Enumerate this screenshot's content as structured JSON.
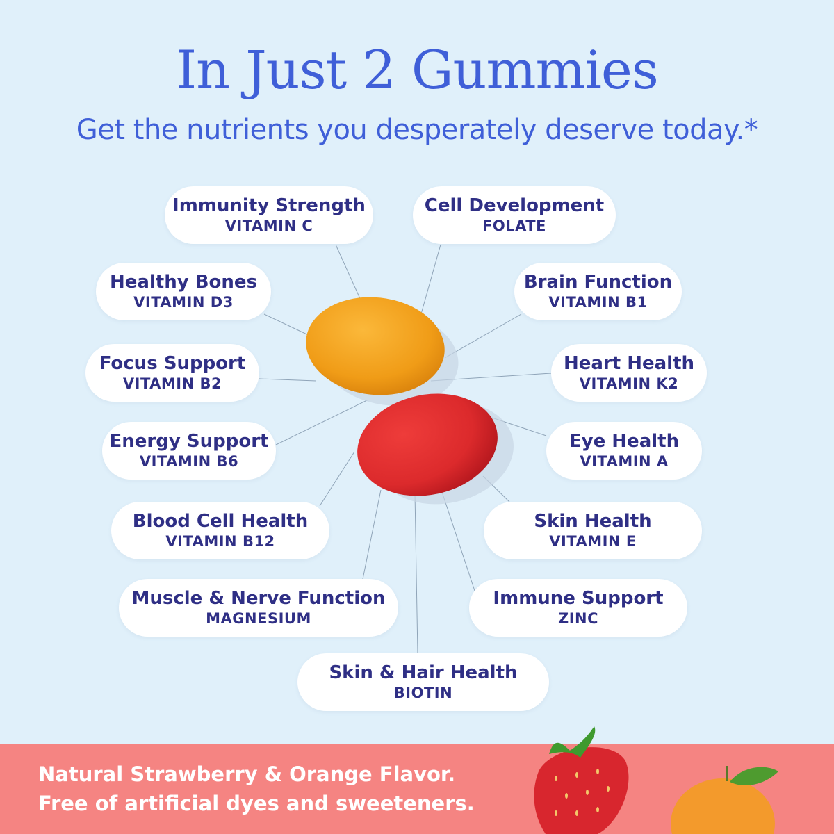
{
  "header": {
    "title": "In Just 2 Gummies",
    "subtitle": "Get the nutrients you desperately deserve today.*"
  },
  "benefits": [
    {
      "benefit": "Immunity Strength",
      "nutrient": "VITAMIN C"
    },
    {
      "benefit": "Cell Development",
      "nutrient": "FOLATE"
    },
    {
      "benefit": "Healthy Bones",
      "nutrient": "VITAMIN D3"
    },
    {
      "benefit": "Brain Function",
      "nutrient": "VITAMIN B1"
    },
    {
      "benefit": "Focus Support",
      "nutrient": "VITAMIN B2"
    },
    {
      "benefit": "Heart Health",
      "nutrient": "VITAMIN K2"
    },
    {
      "benefit": "Energy Support",
      "nutrient": "VITAMIN B6"
    },
    {
      "benefit": "Eye Health",
      "nutrient": "VITAMIN A"
    },
    {
      "benefit": "Blood Cell Health",
      "nutrient": "VITAMIN B12"
    },
    {
      "benefit": "Skin Health",
      "nutrient": "VITAMIN E"
    },
    {
      "benefit": "Muscle & Nerve Function",
      "nutrient": "MAGNESIUM"
    },
    {
      "benefit": "Immune Support",
      "nutrient": "ZINC"
    },
    {
      "benefit": "Skin & Hair Health",
      "nutrient": "BIOTIN"
    }
  ],
  "footer": {
    "line1": "Natural Strawberry & Orange Flavor.",
    "line2": "Free of artificial dyes and sweeteners."
  },
  "colors": {
    "background": "#e0f0fa",
    "title": "#3f5fd8",
    "pill_text": "#2f2f85",
    "band": "#f58482",
    "orange_gummy": "#f2a21e",
    "red_gummy": "#df2b2e"
  }
}
